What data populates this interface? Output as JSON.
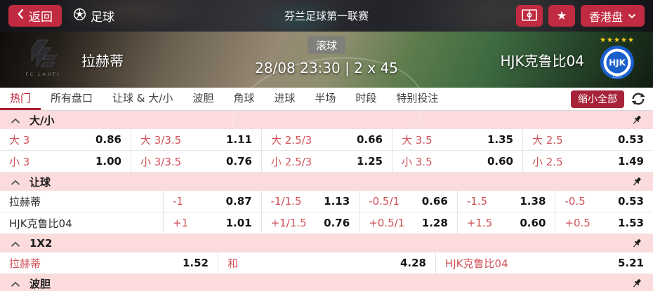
{
  "topbar": {
    "back_label": "返回",
    "sport_label": "足球",
    "league_title": "芬兰足球第一联赛",
    "odds_format_label": "香港盘",
    "accent_color": "#c12b41"
  },
  "icons": {
    "back": "chevron-left",
    "sport": "football",
    "pitch_button": "pitch-diagram",
    "favorite_button": "star",
    "odds_format": "chevron-down",
    "refresh": "refresh-arrows",
    "section_collapse": "chevron-up",
    "section_pin": "pushpin",
    "favorite_glyph": "★"
  },
  "match": {
    "home_team": "拉赫蒂",
    "away_team": "HJK克鲁比04",
    "live_badge": "滚球",
    "kickoff": "28/08 23:30 | 2 x 45",
    "home_logo_caption": "FC LAHTI",
    "away_logo_stars": "★★★★★",
    "away_logo_monogram": "HJK",
    "away_logo_year": "1907",
    "away_logo_color": "#1a5ecc"
  },
  "tabs": {
    "items": [
      "热门",
      "所有盘口",
      "让球 & 大/小",
      "波胆",
      "角球",
      "进球",
      "半场",
      "时段",
      "特别投注"
    ],
    "active_index": 0,
    "collapse_all_label": "缩小全部",
    "active_color": "#b51a32"
  },
  "colors": {
    "section_header_bg": "#fbdbdb",
    "odds_label": "#d05158",
    "odds_value": "#141414"
  },
  "sections": [
    {
      "key": "over-under",
      "title": "大/小",
      "layout": "five",
      "rows": [
        [
          {
            "label": "大 3",
            "odds": "0.86"
          },
          {
            "label": "大 3/3.5",
            "odds": "1.11"
          },
          {
            "label": "大 2.5/3",
            "odds": "0.66"
          },
          {
            "label": "大 3.5",
            "odds": "1.35"
          },
          {
            "label": "大 2.5",
            "odds": "0.53"
          }
        ],
        [
          {
            "label": "小 3",
            "odds": "1.00"
          },
          {
            "label": "小 3/3.5",
            "odds": "0.76"
          },
          {
            "label": "小 2.5/3",
            "odds": "1.25"
          },
          {
            "label": "小 3.5",
            "odds": "0.60"
          },
          {
            "label": "小 2.5",
            "odds": "1.49"
          }
        ]
      ]
    },
    {
      "key": "handicap",
      "title": "让球",
      "layout": "team",
      "rows": [
        {
          "team": "拉赫蒂",
          "cells": [
            {
              "label": "-1",
              "odds": "0.87"
            },
            {
              "label": "-1/1.5",
              "odds": "1.13"
            },
            {
              "label": "-0.5/1",
              "odds": "0.66"
            },
            {
              "label": "-1.5",
              "odds": "1.38"
            },
            {
              "label": "-0.5",
              "odds": "0.53"
            }
          ]
        },
        {
          "team": "HJK克鲁比04",
          "cells": [
            {
              "label": "+1",
              "odds": "1.01"
            },
            {
              "label": "+1/1.5",
              "odds": "0.76"
            },
            {
              "label": "+0.5/1",
              "odds": "1.28"
            },
            {
              "label": "+1.5",
              "odds": "0.60"
            },
            {
              "label": "+0.5",
              "odds": "1.53"
            }
          ]
        }
      ]
    },
    {
      "key": "1x2",
      "title": "1X2",
      "layout": "three",
      "rows": [
        [
          {
            "label": "拉赫蒂",
            "odds": "1.52"
          },
          {
            "label": "和",
            "odds": "4.28"
          },
          {
            "label": "HJK克鲁比04",
            "odds": "5.21"
          }
        ]
      ]
    },
    {
      "key": "correct-score",
      "title": "波胆",
      "layout": "five",
      "rows": []
    }
  ]
}
